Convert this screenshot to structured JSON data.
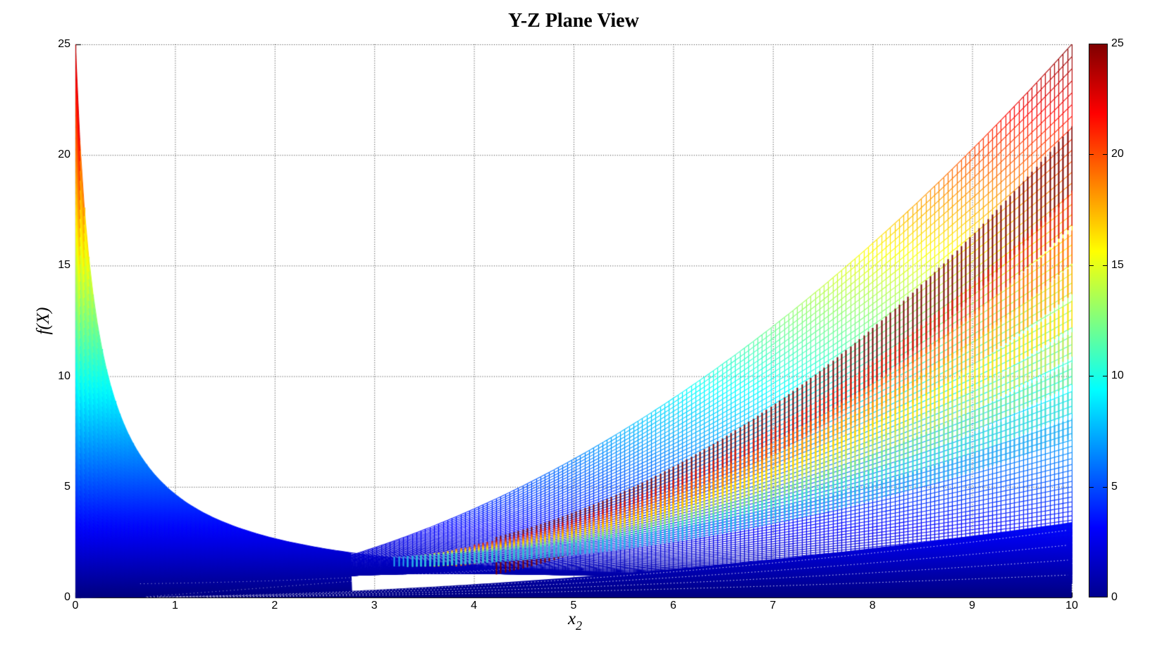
{
  "chart_data": {
    "type": "surface-mesh-projection",
    "title": "Y-Z Plane View",
    "xlabel_base": "x",
    "xlabel_sub": "2",
    "ylabel": "f(X)",
    "view": "Y-Z plane (3-D surface seen edge-on along x1)",
    "xlim": [
      0,
      10
    ],
    "ylim": [
      0,
      25
    ],
    "x_ticks": [
      0,
      1,
      2,
      3,
      4,
      5,
      6,
      7,
      8,
      9,
      10
    ],
    "y_ticks": [
      0,
      5,
      10,
      15,
      20,
      25
    ],
    "grid": true,
    "grid_x_lines": [
      1,
      2,
      3,
      4,
      5,
      6,
      7,
      8,
      9,
      10
    ],
    "grid_y_lines": [
      5,
      10,
      15,
      20,
      25
    ],
    "colormap": "jet",
    "colormap_css_stops": [
      "#00008f 0%",
      "#0000ff 12.5%",
      "#00ffff 37.5%",
      "#ffff00 62.5%",
      "#ff0000 87.5%",
      "#7f0000 100%"
    ],
    "colorbar": {
      "min": 0,
      "max": 25,
      "ticks": [
        0,
        5,
        10,
        15,
        20,
        25
      ],
      "dash_ticks": [
        5,
        10,
        15,
        20
      ]
    },
    "surface_model": {
      "description": "family f(m,x)=25*(1-m)^2/(1+c*x)^p + m^2*x^2/4, m in [0,1]; color = jet(f/25)",
      "rows": 90,
      "cols": 225,
      "amp": 25,
      "hyp_c": 5.2,
      "hyp_p": 0.92,
      "para_div": 4,
      "upper_right_envelope": "f = x^2/4 (reaches 25 at x=10)",
      "upper_left_envelope": "f = 25/(1+5.2x)^0.92 (25 at x=0)",
      "envelope_min_point": [
        2.6,
        1.8
      ],
      "solid_wedge": {
        "coef": 0.34,
        "pow": 1.9,
        "note": "solid dark-blue base up to ~3.4 at x=10"
      },
      "fold_bands": [
        {
          "a": 0.356,
          "th": 3.0,
          "color": "#780000",
          "x0": 4.2
        },
        {
          "a": 0.303,
          "th": 1.6,
          "color": "#de1400",
          "x0": 4.0
        },
        {
          "a": 0.27,
          "th": 1.5,
          "color": "#ff6400",
          "x0": 3.8
        },
        {
          "a": 0.241,
          "th": 1.3,
          "color": "#ffaa00",
          "x0": 3.7
        },
        {
          "a": 0.212,
          "th": 1.2,
          "color": "#ffe000",
          "x0": 3.6
        },
        {
          "a": 0.186,
          "th": 1.1,
          "color": "#c0e850",
          "x0": 3.5
        },
        {
          "a": 0.161,
          "th": 1.0,
          "color": "#70e890",
          "x0": 3.4
        },
        {
          "a": 0.137,
          "th": 1.0,
          "color": "#38e0d0",
          "x0": 3.3
        },
        {
          "a": 0.115,
          "th": 0.9,
          "color": "#20aaf0",
          "x0": 3.2
        }
      ],
      "moire_fracs": [
        0.3,
        0.5,
        0.7,
        0.9
      ],
      "moire_offsets": [
        0.25,
        0.6
      ]
    }
  }
}
